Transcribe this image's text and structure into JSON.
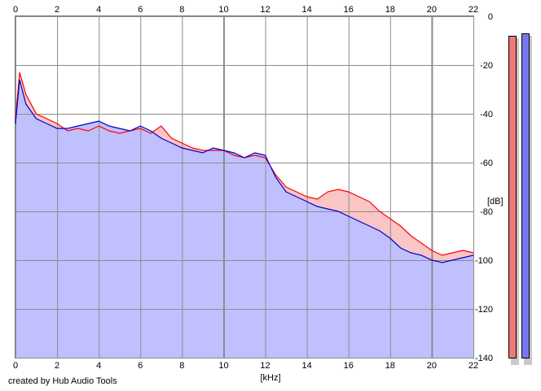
{
  "chart_data": {
    "type": "area",
    "xlabel": "[kHz]",
    "ylabel": "[dB]",
    "xlim": [
      0,
      22
    ],
    "ylim": [
      -140,
      0
    ],
    "x_ticks": [
      0,
      2,
      4,
      6,
      8,
      10,
      12,
      14,
      16,
      18,
      20,
      22
    ],
    "y_ticks": [
      0,
      -20,
      -40,
      -60,
      -80,
      -100,
      -120,
      -140
    ],
    "grid": true,
    "series": [
      {
        "color": "#ff0000",
        "fill": "#f9c5c5",
        "x": [
          0,
          0.2,
          0.5,
          1,
          1.5,
          2,
          2.5,
          3,
          3.5,
          4,
          4.5,
          5,
          5.5,
          6,
          6.5,
          7,
          7.5,
          8,
          8.5,
          9,
          9.5,
          10,
          10.5,
          11,
          11.5,
          12,
          12.5,
          13,
          13.5,
          14,
          14.5,
          15,
          15.5,
          16,
          16.5,
          17,
          17.5,
          18,
          18.5,
          19,
          19.5,
          20,
          20.5,
          21,
          21.5,
          22
        ],
        "values": [
          -42,
          -23,
          -32,
          -40,
          -42,
          -44,
          -47,
          -46,
          -47,
          -45,
          -47,
          -48,
          -47,
          -46,
          -48,
          -45,
          -50,
          -52,
          -54,
          -55,
          -55,
          -55,
          -57,
          -58,
          -57,
          -58,
          -65,
          -70,
          -72,
          -74,
          -75,
          -72,
          -71,
          -72,
          -74,
          -76,
          -80,
          -83,
          -86,
          -90,
          -93,
          -96,
          -98,
          -97,
          -96,
          -97
        ]
      },
      {
        "color": "#0000cc",
        "fill": "#c0c0ff",
        "x": [
          0,
          0.2,
          0.5,
          1,
          1.5,
          2,
          2.5,
          3,
          3.5,
          4,
          4.5,
          5,
          5.5,
          6,
          6.5,
          7,
          7.5,
          8,
          8.5,
          9,
          9.5,
          10,
          10.5,
          11,
          11.5,
          12,
          12.5,
          13,
          13.5,
          14,
          14.5,
          15,
          15.5,
          16,
          16.5,
          17,
          17.5,
          18,
          18.5,
          19,
          19.5,
          20,
          20.5,
          21,
          21.5,
          22
        ],
        "values": [
          -44,
          -26,
          -36,
          -42,
          -44,
          -46,
          -46,
          -45,
          -44,
          -43,
          -45,
          -46,
          -47,
          -45,
          -47,
          -50,
          -52,
          -54,
          -55,
          -56,
          -54,
          -55,
          -56,
          -58,
          -56,
          -57,
          -66,
          -72,
          -74,
          -76,
          -78,
          -79,
          -80,
          -82,
          -84,
          -86,
          -88,
          -91,
          -95,
          -97,
          -98,
          -100,
          -101,
          -100,
          -99,
          -98
        ]
      }
    ],
    "meters": [
      {
        "color": "#f07878",
        "level_db": -8
      },
      {
        "color": "#7878f0",
        "level_db": -7
      }
    ]
  },
  "footer": {
    "credit": "created by Hub Audio Tools"
  }
}
